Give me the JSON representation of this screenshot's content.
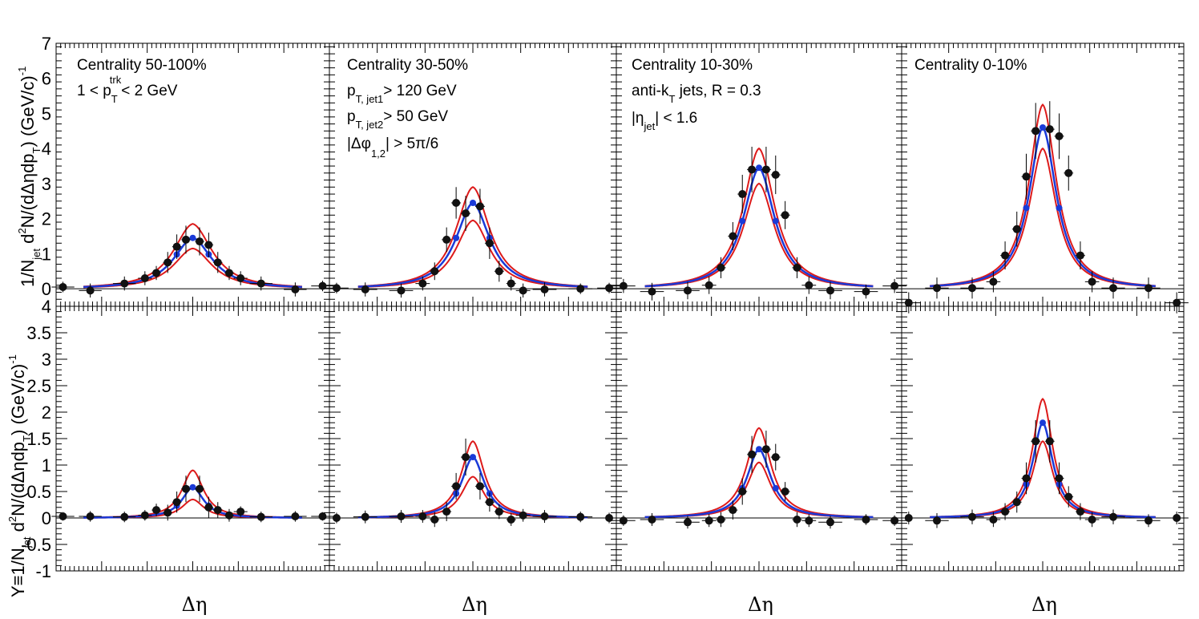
{
  "figure": {
    "ylabel_top_html": [
      "1/N",
      "jet",
      " d",
      "2",
      "N/(dΔηdp",
      "T",
      ") (GeV/c)",
      "-1"
    ],
    "ylabel_bottom_html": [
      "Y≡1/N",
      "jet",
      " d",
      "2",
      "N/(dΔηdp",
      "T",
      ") (GeV/c)",
      "-1"
    ],
    "xlabel": "Δη",
    "colors": {
      "data": "#111111",
      "fit_central": "#1a3ad8",
      "fit_band": "#dd1a1a"
    }
  },
  "annotations": {
    "p0_line1": "Centrality 50-100%",
    "p0_line2": [
      "1 < p",
      "T",
      "trk",
      "< 2 GeV"
    ],
    "p1_line1": "Centrality 30-50%",
    "p1_line2": [
      "p",
      "T, jet1",
      "> 120 GeV"
    ],
    "p1_line3": [
      "p",
      "T, jet2",
      "> 50 GeV"
    ],
    "p1_line4": [
      "|Δφ",
      "1,2",
      "| > 5π/6"
    ],
    "p2_line1": "Centrality 10-30%",
    "p2_line2": [
      "anti-k",
      "T",
      " jets, R = 0.3"
    ],
    "p2_line3": [
      "|η",
      "jet",
      "| < 1.6"
    ],
    "p3_line1": "Centrality 0-10%"
  },
  "chart_data": {
    "type": "scatter",
    "x_points": [
      -2.85,
      -2.25,
      -1.5,
      -1.05,
      -0.8,
      -0.55,
      -0.35,
      -0.15,
      0.15,
      0.35,
      0.55,
      0.8,
      1.05,
      1.5,
      2.25,
      2.85
    ],
    "x_halfwidth": [
      0.25,
      0.25,
      0.25,
      0.15,
      0.1,
      0.1,
      0.1,
      0.1,
      0.1,
      0.1,
      0.1,
      0.1,
      0.15,
      0.25,
      0.25,
      0.25
    ],
    "xlim": [
      -3,
      3
    ],
    "rows": [
      {
        "ylim": [
          -0.5,
          7
        ],
        "yticks": [
          0,
          1,
          2,
          3,
          4,
          5,
          6,
          7
        ],
        "ytick_labels": [
          "0",
          "1",
          "2",
          "3",
          "4",
          "5",
          "6",
          "7"
        ]
      },
      {
        "ylim": [
          -1,
          4
        ],
        "yticks": [
          -1,
          -0.5,
          0,
          0.5,
          1,
          1.5,
          2,
          2.5,
          3,
          3.5,
          4
        ],
        "ytick_labels": [
          "-1",
          "-0.5",
          "0",
          "0.5",
          "1",
          "1.5",
          "2",
          "2.5",
          "3",
          "3.5",
          "4"
        ]
      }
    ],
    "panels": [
      {
        "row": 0,
        "col": 0,
        "centrality": "50-100%",
        "amp": 1.45,
        "width": 0.55,
        "band_hi": 1.85,
        "band_lo": 1.15,
        "y": [
          0.05,
          -0.05,
          0.15,
          0.3,
          0.45,
          0.75,
          1.2,
          1.4,
          1.35,
          1.25,
          0.75,
          0.45,
          0.3,
          0.15,
          -0.02,
          0.08
        ],
        "yerr": [
          0.15,
          0.2,
          0.2,
          0.2,
          0.2,
          0.3,
          0.35,
          0.4,
          0.4,
          0.35,
          0.3,
          0.2,
          0.2,
          0.2,
          0.2,
          0.15
        ]
      },
      {
        "row": 0,
        "col": 1,
        "centrality": "30-50%",
        "amp": 2.45,
        "width": 0.45,
        "band_hi": 2.9,
        "band_lo": 1.95,
        "y": [
          0.02,
          -0.02,
          -0.05,
          0.15,
          0.5,
          1.4,
          2.45,
          2.15,
          2.35,
          1.3,
          0.5,
          0.15,
          -0.05,
          -0.02,
          0.0,
          0.02
        ],
        "yerr": [
          0.15,
          0.2,
          0.2,
          0.2,
          0.25,
          0.35,
          0.45,
          0.5,
          0.5,
          0.45,
          0.3,
          0.2,
          0.2,
          0.2,
          0.15,
          0.15
        ]
      },
      {
        "row": 0,
        "col": 2,
        "centrality": "10-30%",
        "amp": 3.45,
        "width": 0.42,
        "band_hi": 4.0,
        "band_lo": 3.0,
        "y": [
          0.08,
          -0.08,
          -0.05,
          0.1,
          0.6,
          1.5,
          2.7,
          3.4,
          3.4,
          3.25,
          2.1,
          0.6,
          0.1,
          -0.05,
          -0.08,
          0.08
        ],
        "yerr": [
          0.2,
          0.25,
          0.25,
          0.25,
          0.3,
          0.4,
          0.55,
          0.65,
          0.65,
          0.55,
          0.4,
          0.3,
          0.25,
          0.25,
          0.2,
          0.2
        ]
      },
      {
        "row": 0,
        "col": 3,
        "centrality": "0-10%",
        "amp": 4.6,
        "width": 0.37,
        "band_hi": 5.25,
        "band_lo": 4.0,
        "y": [
          -0.4,
          0.02,
          0.02,
          0.2,
          0.95,
          1.7,
          3.2,
          4.5,
          4.55,
          4.35,
          3.3,
          0.95,
          0.2,
          0.02,
          0.02,
          -0.4
        ],
        "yerr": [
          0.3,
          0.3,
          0.3,
          0.3,
          0.4,
          0.5,
          0.65,
          0.8,
          0.8,
          0.65,
          0.5,
          0.4,
          0.3,
          0.3,
          0.3,
          0.3
        ]
      },
      {
        "row": 1,
        "col": 0,
        "centrality": "50-100%",
        "amp": 0.58,
        "width": 0.3,
        "band_hi": 0.9,
        "band_lo": 0.35,
        "y": [
          0.03,
          0.03,
          0.02,
          0.05,
          0.15,
          0.1,
          0.3,
          0.55,
          0.55,
          0.2,
          0.15,
          0.05,
          0.12,
          0.02,
          0.03,
          0.03
        ],
        "yerr": [
          0.08,
          0.1,
          0.1,
          0.1,
          0.12,
          0.15,
          0.2,
          0.25,
          0.25,
          0.2,
          0.15,
          0.12,
          0.1,
          0.1,
          0.1,
          0.08
        ]
      },
      {
        "row": 1,
        "col": 1,
        "centrality": "30-50%",
        "amp": 1.15,
        "width": 0.3,
        "band_hi": 1.45,
        "band_lo": 0.78,
        "y": [
          0.0,
          0.02,
          0.03,
          0.03,
          -0.03,
          0.12,
          0.6,
          1.15,
          0.6,
          0.3,
          0.12,
          -0.03,
          0.05,
          0.03,
          0.02,
          0.0
        ],
        "yerr": [
          0.1,
          0.12,
          0.12,
          0.12,
          0.14,
          0.18,
          0.25,
          0.35,
          0.25,
          0.18,
          0.14,
          0.12,
          0.12,
          0.12,
          0.1,
          0.1
        ]
      },
      {
        "row": 1,
        "col": 2,
        "centrality": "10-30%",
        "amp": 1.3,
        "width": 0.32,
        "band_hi": 1.7,
        "band_lo": 1.05,
        "y": [
          -0.05,
          -0.03,
          -0.08,
          -0.05,
          -0.03,
          0.15,
          0.5,
          1.2,
          1.3,
          1.15,
          0.5,
          -0.03,
          -0.05,
          -0.08,
          -0.03,
          -0.05
        ],
        "yerr": [
          0.1,
          0.12,
          0.12,
          0.12,
          0.14,
          0.18,
          0.25,
          0.35,
          0.35,
          0.25,
          0.18,
          0.14,
          0.12,
          0.12,
          0.1,
          0.1
        ]
      },
      {
        "row": 1,
        "col": 3,
        "centrality": "0-10%",
        "amp": 1.8,
        "width": 0.27,
        "band_hi": 2.25,
        "band_lo": 1.45,
        "y": [
          0.0,
          -0.05,
          0.02,
          -0.03,
          0.12,
          0.3,
          0.75,
          1.45,
          1.45,
          0.75,
          0.4,
          0.12,
          -0.03,
          0.02,
          -0.05,
          0.0
        ],
        "yerr": [
          0.12,
          0.14,
          0.14,
          0.14,
          0.16,
          0.2,
          0.3,
          0.4,
          0.4,
          0.3,
          0.2,
          0.16,
          0.14,
          0.14,
          0.12,
          0.12
        ]
      }
    ]
  }
}
